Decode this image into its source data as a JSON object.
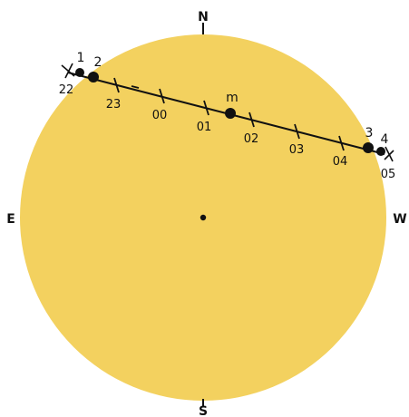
{
  "colors": {
    "disc": "#f3d15f",
    "line": "#111111",
    "background": "#ffffff"
  },
  "compass": {
    "north": "N",
    "south": "S",
    "east": "E",
    "west": "W"
  },
  "contacts": {
    "c1": "1",
    "c2": "2",
    "mid": "m",
    "c3": "3",
    "c4": "4"
  },
  "hours": [
    "22",
    "23",
    "00",
    "01",
    "02",
    "03",
    "04",
    "05"
  ]
}
